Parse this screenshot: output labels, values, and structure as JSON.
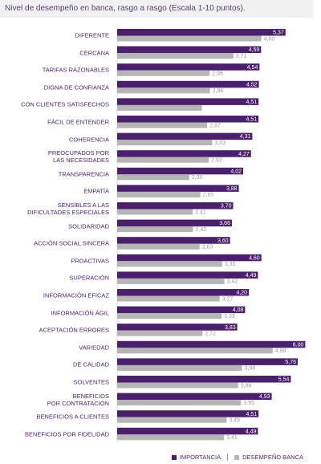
{
  "chart_data": {
    "type": "hbar",
    "title": "Nivel de desempeño en banca, rasgo a rasgo (Escala 1-10 puntos).",
    "categories": [
      "DIFERENTE",
      "CERCANA",
      "TARIFAS RAZONABLES",
      "DIGNA DE CONFIANZA",
      "CON CLIENTES SATISFECHOS",
      "FÁCIL DE ENTENDER",
      "COHERENCIA",
      "PREOCUPADOS POR\nLAS NECESIDADES",
      "TRANSPARENCIA",
      "EMPATÍA",
      "SENSIBLES A LAS\nDIFICULTADES ESPECIALES",
      "SOLIDARIDAD",
      "ACCIÓN SOCIAL SINCERA",
      "PROACTIVAS",
      "SUPERACIÓN",
      "INFORMACIÓN EFICAZ",
      "INFORMACIÓN ÁGIL",
      "ACEPTACIÓN ERRORES",
      "VARIEDAD",
      "DE CALIDAD",
      "SOLVENTES",
      "BENEFICIOS\nPOR CONTRATACIÓN",
      "BENEFICIOS A CLIENTES",
      "BENEFICIOS POR FIDELIDAD"
    ],
    "series": [
      {
        "name": "IMPORTANCIA",
        "color": "#4a1f6b",
        "values": [
          5.37,
          4.59,
          4.54,
          4.52,
          4.51,
          4.51,
          4.31,
          4.27,
          4.02,
          3.88,
          3.7,
          3.66,
          3.6,
          4.6,
          4.49,
          4.2,
          4.08,
          3.83,
          6.0,
          5.76,
          5.54,
          4.93,
          4.51,
          4.49
        ],
        "value_labels": [
          "5,37",
          "4,59",
          "4,54",
          "4,52",
          "4,51",
          "4,51",
          "4,31",
          "4,27",
          "4,02",
          "3,88",
          "3,70",
          "3,66",
          "3,60",
          "4,60",
          "4,49",
          "4,20",
          "4,08",
          "3,83",
          "6,00",
          "5,76",
          "5,54",
          "4,93",
          "4,51",
          "4,49"
        ]
      },
      {
        "name": "DESEMPEÑO BANCA",
        "color": "#b5b5b5",
        "values": [
          4.6,
          3.71,
          2.95,
          2.96,
          2.7,
          2.87,
          3.03,
          2.92,
          2.3,
          2.65,
          2.41,
          2.42,
          2.63,
          3.35,
          3.42,
          3.27,
          3.33,
          2.72,
          4.96,
          3.98,
          3.86,
          3.95,
          3.49,
          3.41
        ],
        "value_labels": [
          "4,60",
          "3,71",
          "2,95",
          "2,96",
          null,
          "2,87",
          "3,03",
          "2,92",
          "2,30",
          "2,65",
          "2,41",
          "2,42",
          "2,63",
          "3,35",
          "3,42",
          "3,27",
          "3,33",
          "2,72",
          "4,96",
          "3,98",
          "3,86",
          "3,95",
          "3,49",
          "3,41"
        ]
      }
    ],
    "xlim": [
      0,
      6.4
    ]
  }
}
